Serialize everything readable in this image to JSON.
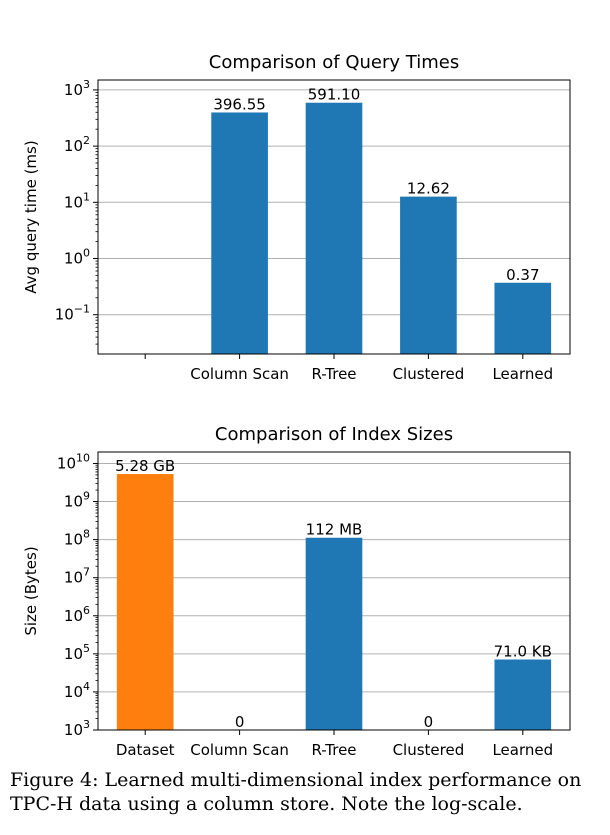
{
  "chart_data": [
    {
      "type": "bar",
      "title": "Comparison of Query Times",
      "xlabel": "",
      "ylabel": "Avg query time (ms)",
      "yscale": "log",
      "ylim": [
        0.02,
        1500
      ],
      "yticks": [
        {
          "value": 0.1,
          "exponent": "−1"
        },
        {
          "value": 1,
          "exponent": "0"
        },
        {
          "value": 10,
          "exponent": "1"
        },
        {
          "value": 100,
          "exponent": "2"
        },
        {
          "value": 1000,
          "exponent": "3"
        }
      ],
      "grid": true,
      "categories": [
        "",
        "Column Scan",
        "R-Tree",
        "Clustered",
        "Learned"
      ],
      "values": [
        null,
        396.55,
        591.1,
        12.62,
        0.37
      ],
      "labels": [
        "",
        "396.55",
        "591.10",
        "12.62",
        "0.37"
      ],
      "colors": [
        "#1f77b4",
        "#1f77b4",
        "#1f77b4",
        "#1f77b4",
        "#1f77b4"
      ]
    },
    {
      "type": "bar",
      "title": "Comparison of Index Sizes",
      "xlabel": "",
      "ylabel": "Size (Bytes)",
      "yscale": "log",
      "ylim": [
        1000,
        20000000000
      ],
      "yticks": [
        {
          "value": 1000,
          "exponent": "3"
        },
        {
          "value": 10000,
          "exponent": "4"
        },
        {
          "value": 100000,
          "exponent": "5"
        },
        {
          "value": 1000000,
          "exponent": "6"
        },
        {
          "value": 10000000,
          "exponent": "7"
        },
        {
          "value": 100000000,
          "exponent": "8"
        },
        {
          "value": 1000000000,
          "exponent": "9"
        },
        {
          "value": 10000000000,
          "exponent": "10"
        }
      ],
      "grid": true,
      "categories": [
        "Dataset",
        "Column Scan",
        "R-Tree",
        "Clustered",
        "Learned"
      ],
      "values": [
        5280000000,
        0,
        112000000,
        0,
        71000
      ],
      "labels": [
        "5.28 GB",
        "0",
        "112 MB",
        "0",
        "71.0 KB"
      ],
      "colors": [
        "#ff7f0e",
        "#1f77b4",
        "#1f77b4",
        "#1f77b4",
        "#1f77b4"
      ]
    }
  ],
  "caption": {
    "line1": "Figure 4: Learned multi-dimensional index performance on",
    "line2": "TPC-H data using a column store. Note the log-scale."
  }
}
